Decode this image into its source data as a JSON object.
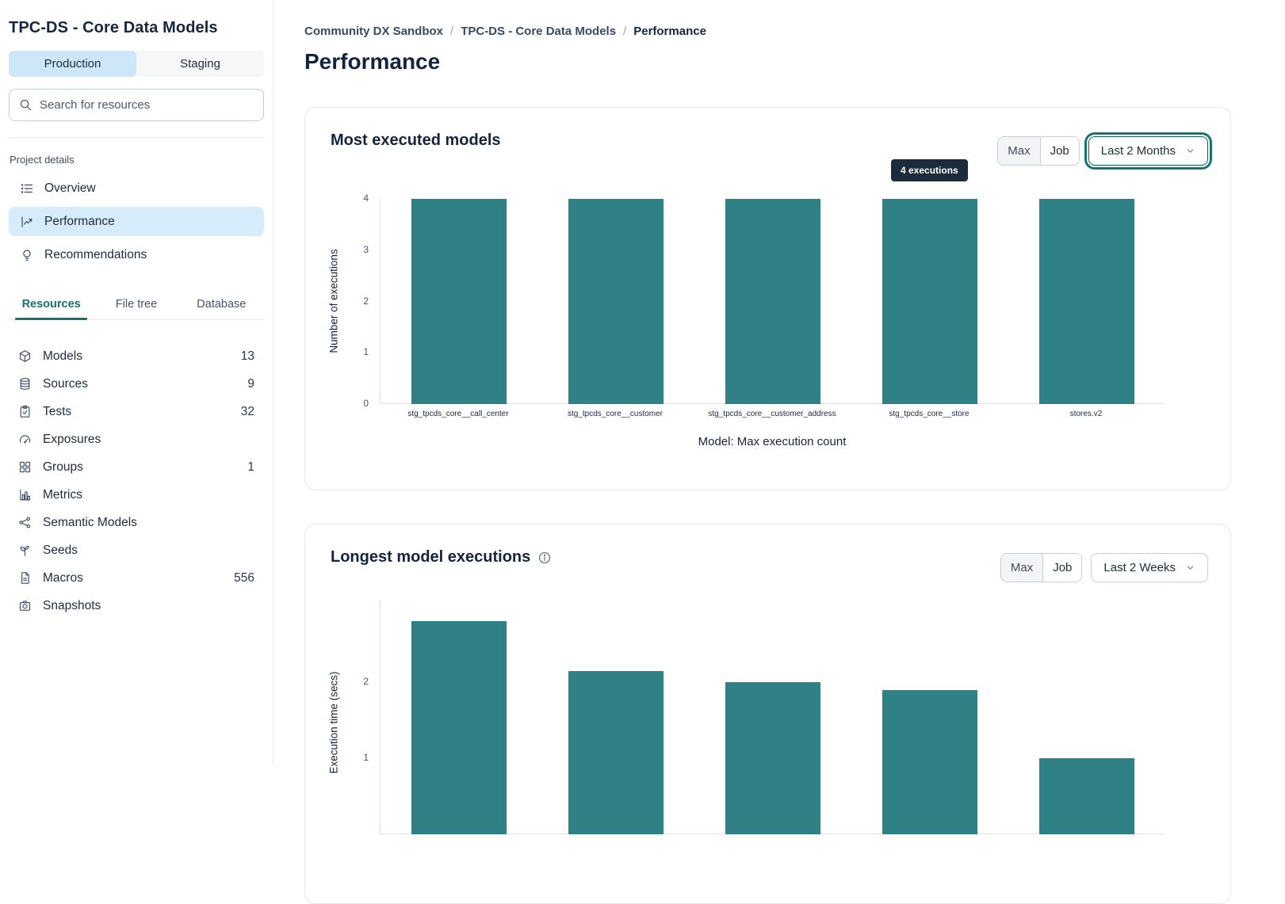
{
  "sidebar": {
    "project_title": "TPC-DS - Core Data Models",
    "env_tabs": [
      {
        "label": "Production",
        "active": true
      },
      {
        "label": "Staging",
        "active": false
      }
    ],
    "search": {
      "placeholder": "Search for resources"
    },
    "project_details": {
      "label": "Project details",
      "items": [
        {
          "label": "Overview",
          "icon": "list-icon",
          "active": false
        },
        {
          "label": "Performance",
          "icon": "line-chart-icon",
          "active": true
        },
        {
          "label": "Recommendations",
          "icon": "lightbulb-icon",
          "active": false
        }
      ]
    },
    "resource_tabs": [
      {
        "label": "Resources",
        "active": true
      },
      {
        "label": "File tree",
        "active": false
      },
      {
        "label": "Database",
        "active": false
      }
    ],
    "resources": [
      {
        "label": "Models",
        "icon": "cube-icon",
        "count": "13"
      },
      {
        "label": "Sources",
        "icon": "database-icon",
        "count": "9"
      },
      {
        "label": "Tests",
        "icon": "clipboard-check-icon",
        "count": "32"
      },
      {
        "label": "Exposures",
        "icon": "gauge-icon",
        "count": ""
      },
      {
        "label": "Groups",
        "icon": "grid-icon",
        "count": "1"
      },
      {
        "label": "Metrics",
        "icon": "bar-chart-icon",
        "count": ""
      },
      {
        "label": "Semantic Models",
        "icon": "network-icon",
        "count": ""
      },
      {
        "label": "Seeds",
        "icon": "seedling-icon",
        "count": ""
      },
      {
        "label": "Macros",
        "icon": "document-icon",
        "count": "556"
      },
      {
        "label": "Snapshots",
        "icon": "camera-icon",
        "count": ""
      }
    ]
  },
  "breadcrumb": [
    "Community DX Sandbox",
    "TPC-DS - Core Data Models",
    "Performance"
  ],
  "page_title": "Performance",
  "cards": [
    {
      "segments": [
        "Max",
        "Job"
      ],
      "active_segment": "Job",
      "dropdown": "Last 2 Months",
      "dropdown_focused": true,
      "tooltip": "4 executions"
    },
    {
      "segments": [
        "Max",
        "Job"
      ],
      "active_segment": "Job",
      "dropdown": "Last 2 Weeks",
      "dropdown_focused": false,
      "has_info_icon": true
    }
  ],
  "chart_data": [
    {
      "type": "bar",
      "title": "Most executed models",
      "categories": [
        "stg_tpcds_core__call_center",
        "stg_tpcds_core__customer",
        "stg_tpcds_core__customer_address",
        "stg_tpcds_core__store",
        "stores.v2"
      ],
      "values": [
        4,
        4,
        4,
        4,
        4
      ],
      "ylabel": "Number of executions",
      "xlabel": "Model: Max execution count",
      "ylim": [
        0,
        4
      ],
      "yticks": [
        0,
        1,
        2,
        3,
        4
      ],
      "bar_color": "#308186",
      "grid": false,
      "legend": "none"
    },
    {
      "type": "bar",
      "title": "Longest model executions",
      "categories": [],
      "values": [
        2.8,
        2.15,
        2.0,
        1.9,
        1.0
      ],
      "ylabel": "Execution time (secs)",
      "xlabel": "",
      "ylim": [
        0,
        3
      ],
      "yticks": [
        1,
        2
      ],
      "bar_color": "#308186",
      "grid": false,
      "legend": "none"
    }
  ]
}
